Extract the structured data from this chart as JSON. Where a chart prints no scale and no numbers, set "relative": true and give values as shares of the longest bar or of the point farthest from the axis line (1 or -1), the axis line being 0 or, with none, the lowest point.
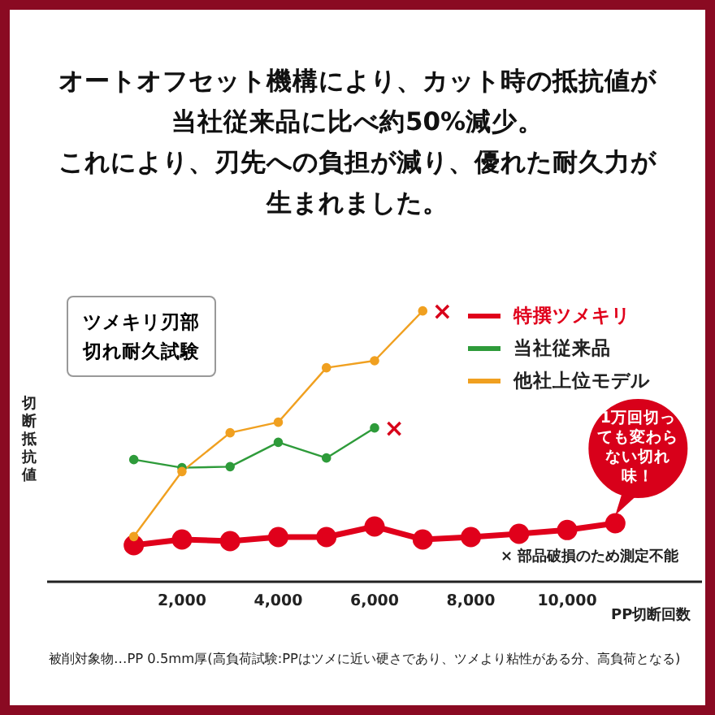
{
  "chart_data": {
    "type": "line",
    "title": "オートオフセット機構により、カット時の抵抗値が当社従来品に比べ約50%減少。",
    "subtitle": "ツメキリ刃部切れ耐久試験",
    "ylabel": "切断抵抗値",
    "xlabel": "PP切断回数",
    "relative": true,
    "xlim": [
      -800,
      12800
    ],
    "xticks": [
      {
        "value": 2000,
        "label": "2,000"
      },
      {
        "value": 4000,
        "label": "4,000"
      },
      {
        "value": 6000,
        "label": "6,000"
      },
      {
        "value": 8000,
        "label": "8,000"
      },
      {
        "value": 10000,
        "label": "10,000"
      }
    ],
    "legend": "top right",
    "marker": "circle",
    "series": [
      {
        "name": "特撰ツメキリ",
        "color": "#e0001b",
        "x": [
          1000,
          2000,
          3000,
          4000,
          5000,
          6000,
          7000,
          8000,
          9000,
          10000,
          11000
        ],
        "values": [
          0.135,
          0.156,
          0.15,
          0.165,
          0.165,
          0.204,
          0.156,
          0.165,
          0.177,
          0.191,
          0.216
        ]
      },
      {
        "name": "当社従来品",
        "color": "#2e9b3a",
        "x": [
          1000,
          2000,
          3000,
          4000,
          5000,
          6000
        ],
        "values": [
          0.451,
          0.421,
          0.425,
          0.515,
          0.457,
          0.568
        ]
      },
      {
        "name": "他社上位モデル",
        "color": "#f0a020",
        "x": [
          1000,
          2000,
          3000,
          4000,
          5000,
          6000,
          7000
        ],
        "values": [
          0.167,
          0.407,
          0.55,
          0.589,
          0.79,
          0.816,
          1
        ]
      }
    ],
    "annotations": [
      "これにより、刃先への負担が減り、優れた耐久力が生まれました。",
      "被削対象物…PP 0.5mm厚(高負荷試験:PPはツメに近い硬さであり、ツメより粘性がある分、高負荷となる)",
      "× 部品破損のため測定不能",
      {
        "text": "1万回切っても変わらない切れ味！",
        "x": 11000,
        "y": 0.216
      },
      {
        "text": "×",
        "x": 7000,
        "y": 1
      },
      {
        "text": "×",
        "x": 6000,
        "y": 0.568
      }
    ]
  }
}
